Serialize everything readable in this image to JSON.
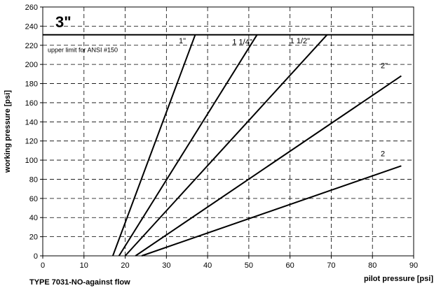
{
  "chart_data": {
    "type": "line",
    "big_label": "3\"",
    "xlabel": "pilot pressure [psi]",
    "ylabel": "working pressure [psi]",
    "footer": "TYPE 7031-NO-against flow",
    "xlim": [
      0,
      90
    ],
    "ylim": [
      0,
      260
    ],
    "x_ticks": [
      0,
      10,
      20,
      30,
      40,
      50,
      60,
      70,
      80,
      90
    ],
    "y_ticks": [
      0,
      20,
      40,
      60,
      80,
      100,
      120,
      140,
      160,
      180,
      200,
      220,
      240,
      260
    ],
    "grid": true,
    "limit_line": {
      "y": 231,
      "label": "upper limit for ANSI #150"
    },
    "series": [
      {
        "name": "1\"",
        "points": [
          [
            17,
            0
          ],
          [
            37,
            231
          ]
        ],
        "label_at": [
          33,
          222
        ]
      },
      {
        "name": "1 1/4\"",
        "points": [
          [
            18.5,
            0
          ],
          [
            52,
            231
          ]
        ],
        "label_at": [
          46,
          221
        ]
      },
      {
        "name": "1 1/2\"",
        "points": [
          [
            20,
            0
          ],
          [
            69,
            231
          ]
        ],
        "label_at": [
          60,
          222
        ]
      },
      {
        "name": "2\"",
        "points": [
          [
            22.5,
            0
          ],
          [
            87,
            188
          ]
        ],
        "label_at": [
          82,
          196
        ]
      },
      {
        "name": "2",
        "points": [
          [
            24,
            0
          ],
          [
            87,
            94
          ]
        ],
        "label_at": [
          82,
          104
        ]
      }
    ]
  }
}
